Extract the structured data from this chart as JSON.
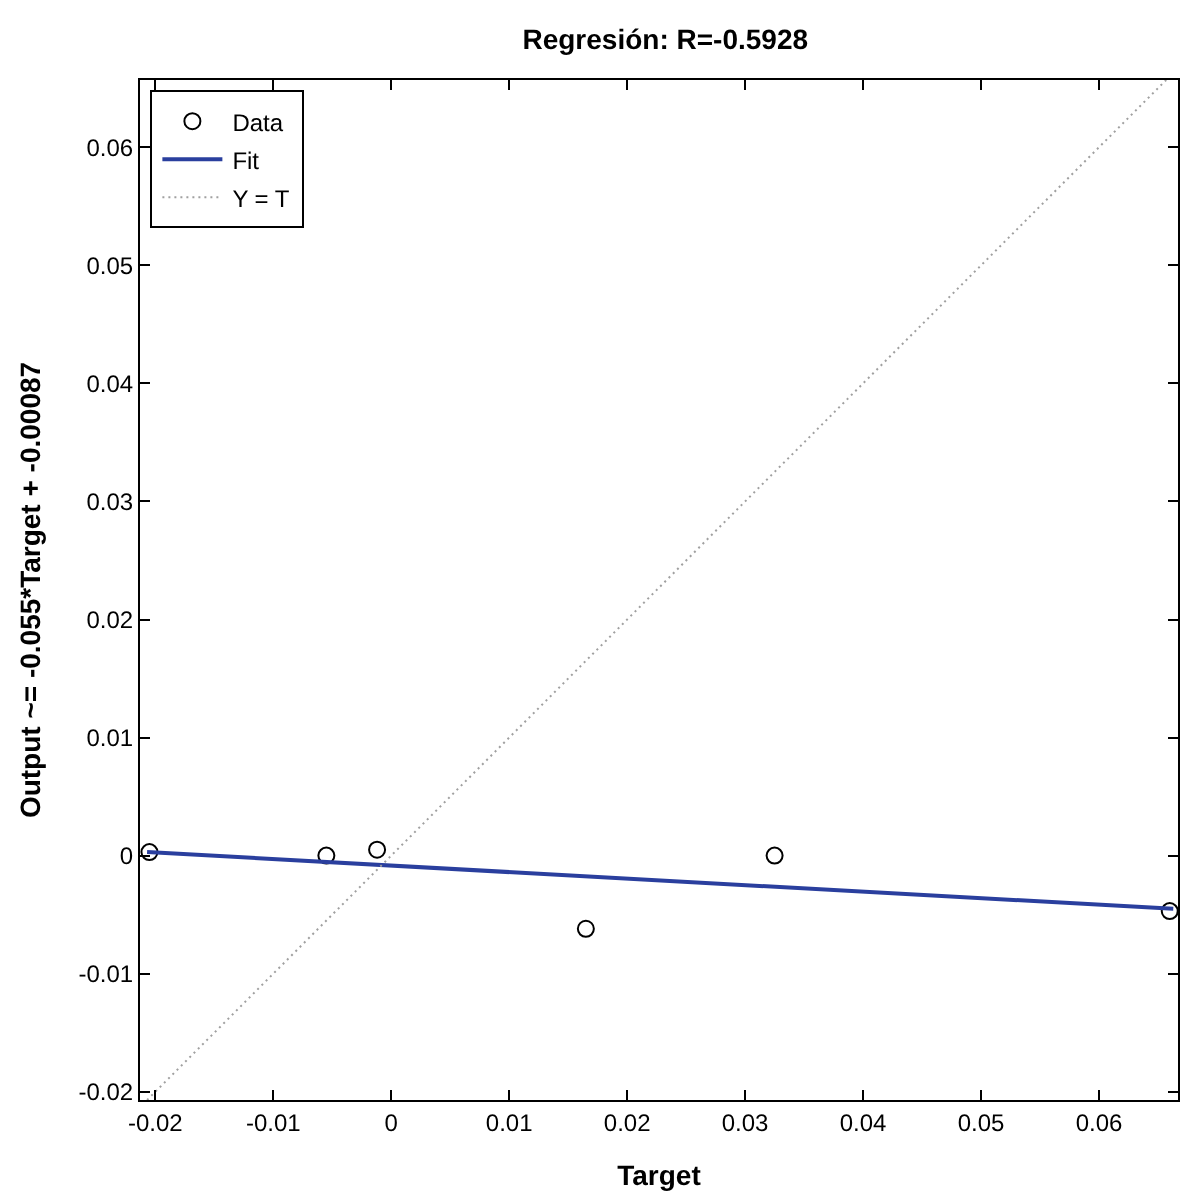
{
  "chart_data": {
    "type": "scatter",
    "title": "Regresión: R=-0.5928",
    "xlabel": "Target",
    "ylabel": "Output ~= -0.055*Target + -0.00087",
    "series": [
      {
        "name": "Data",
        "color": "#000000",
        "marker": "circle",
        "x": [
          -0.0205,
          -0.0055,
          -0.0012,
          0.0165,
          0.0325,
          0.066
        ],
        "values": [
          0.0003,
          0.0,
          0.0005,
          -0.0062,
          0.0,
          -0.0047
        ]
      },
      {
        "name": "Fit",
        "type": "line",
        "color": "#2a3f9e",
        "line_style": "solid",
        "marker": "none",
        "x": [
          -0.0207,
          0.0663
        ],
        "values": [
          0.0003,
          -0.0045
        ]
      },
      {
        "name": "Y = T",
        "type": "line",
        "color": "#a0a0a0",
        "line_style": "dotted",
        "marker": "none",
        "x": [
          -0.0207,
          0.0657
        ],
        "values": [
          -0.0207,
          0.0657
        ]
      }
    ],
    "xlim": [
      -0.0213,
      0.0667
    ],
    "ylim": [
      -0.0207,
      0.0657
    ],
    "xticks": [
      {
        "value": -0.02,
        "label": "-0.02"
      },
      {
        "value": -0.01,
        "label": "-0.01"
      },
      0,
      {
        "value": 0.01,
        "label": "0.01"
      },
      {
        "value": 0.02,
        "label": "0.02"
      },
      {
        "value": 0.03,
        "label": "0.03"
      },
      {
        "value": 0.04,
        "label": "0.04"
      },
      {
        "value": 0.05,
        "label": "0.05"
      },
      {
        "value": 0.06,
        "label": "0.06"
      }
    ],
    "yticks": [
      {
        "value": -0.02,
        "label": "-0.02"
      },
      {
        "value": -0.01,
        "label": "-0.01"
      },
      0,
      {
        "value": 0.01,
        "label": "0.01"
      },
      {
        "value": 0.02,
        "label": "0.02"
      },
      {
        "value": 0.03,
        "label": "0.03"
      },
      {
        "value": 0.04,
        "label": "0.04"
      },
      {
        "value": 0.05,
        "label": "0.05"
      },
      {
        "value": 0.06,
        "label": "0.06"
      }
    ],
    "legend": "top left"
  }
}
